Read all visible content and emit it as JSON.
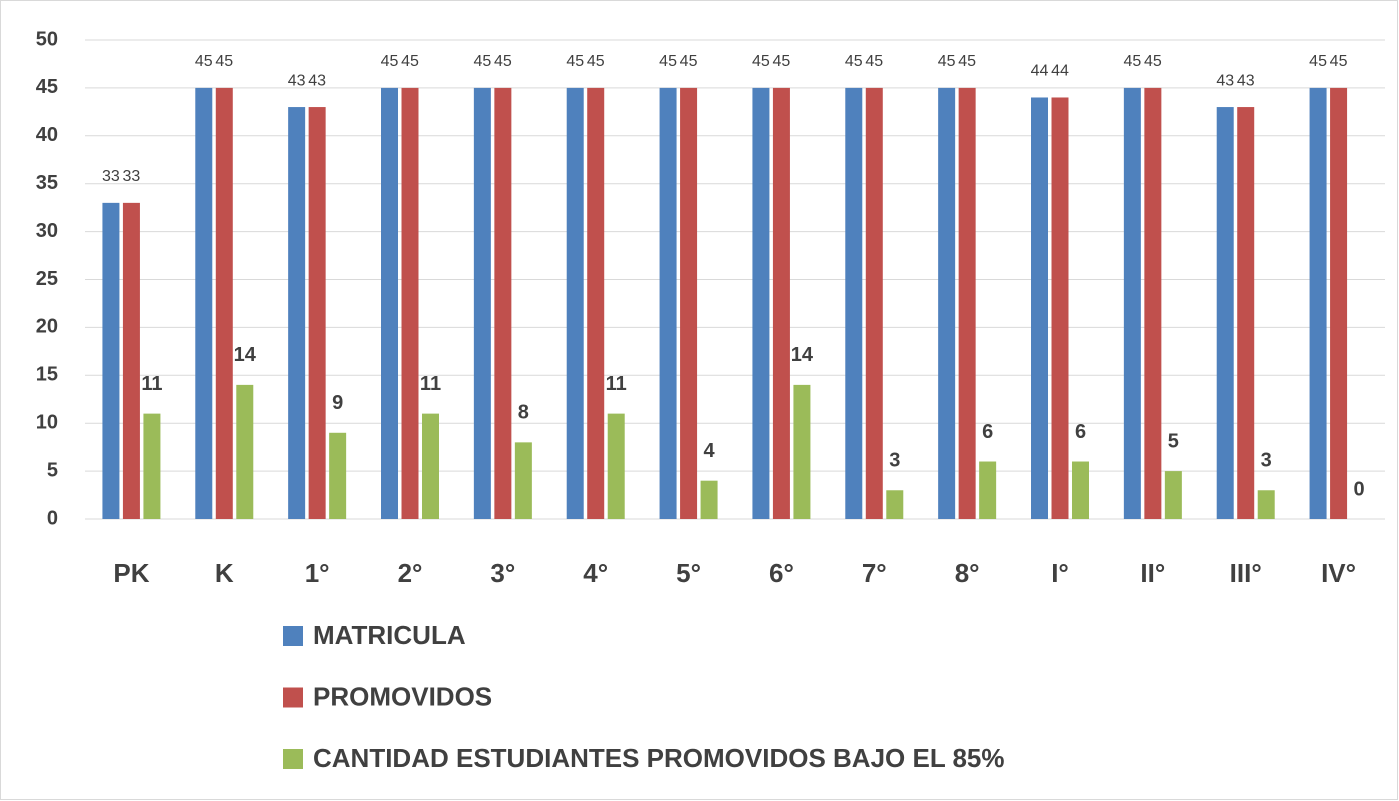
{
  "chart_data": {
    "type": "bar",
    "categories": [
      "PK",
      "K",
      "1°",
      "2°",
      "3°",
      "4°",
      "5°",
      "6°",
      "7°",
      "8°",
      "I°",
      "II°",
      "III°",
      "IV°"
    ],
    "series": [
      {
        "name": "MATRICULA",
        "color": "#4f81bd",
        "values": [
          33,
          45,
          43,
          45,
          45,
          45,
          45,
          45,
          45,
          45,
          44,
          45,
          43,
          45
        ]
      },
      {
        "name": "PROMOVIDOS",
        "color": "#c0504d",
        "values": [
          33,
          45,
          43,
          45,
          45,
          45,
          45,
          45,
          45,
          45,
          44,
          45,
          43,
          45
        ]
      },
      {
        "name": "CANTIDAD ESTUDIANTES PROMOVIDOS BAJO EL 85%",
        "color": "#9bbb59",
        "values": [
          11,
          14,
          9,
          11,
          8,
          11,
          4,
          14,
          3,
          6,
          6,
          5,
          3,
          0
        ]
      }
    ],
    "ylim": [
      0,
      50
    ],
    "yticks": [
      0,
      5,
      10,
      15,
      20,
      25,
      30,
      35,
      40,
      45,
      50
    ],
    "grid": true,
    "legend": "bottom",
    "data_labels": true
  }
}
